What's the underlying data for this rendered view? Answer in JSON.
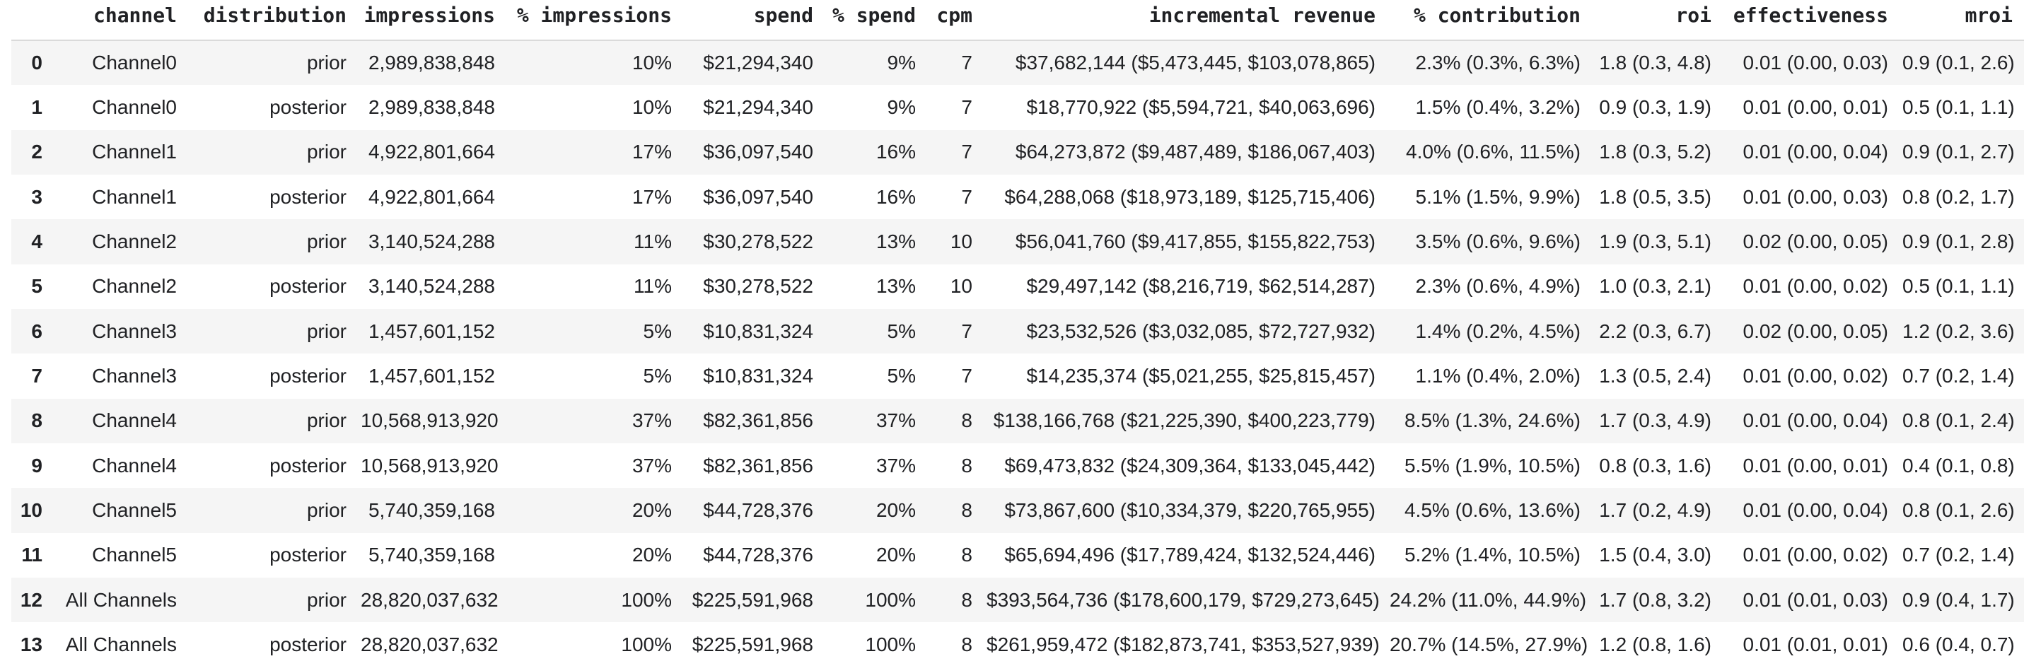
{
  "colors": {
    "background": "#ffffff",
    "text": "#202124",
    "row_stripe": "#f5f5f5",
    "header_border": "#dadada"
  },
  "table": {
    "index_header": "",
    "columns": [
      "channel",
      "distribution",
      "impressions",
      "% impressions",
      "spend",
      "% spend",
      "cpm",
      "incremental revenue",
      "% contribution",
      "roi",
      "effectiveness",
      "mroi"
    ],
    "rows": [
      {
        "index": "0",
        "channel": "Channel0",
        "distribution": "prior",
        "impressions": "2,989,838,848",
        "pct_impressions": "10%",
        "spend": "$21,294,340",
        "pct_spend": "9%",
        "cpm": "7",
        "incremental_revenue": "$37,682,144 ($5,473,445, $103,078,865)",
        "pct_contribution": "2.3% (0.3%, 6.3%)",
        "roi": "1.8 (0.3, 4.8)",
        "effectiveness": "0.01 (0.00, 0.03)",
        "mroi": "0.9 (0.1, 2.6)"
      },
      {
        "index": "1",
        "channel": "Channel0",
        "distribution": "posterior",
        "impressions": "2,989,838,848",
        "pct_impressions": "10%",
        "spend": "$21,294,340",
        "pct_spend": "9%",
        "cpm": "7",
        "incremental_revenue": "$18,770,922 ($5,594,721, $40,063,696)",
        "pct_contribution": "1.5% (0.4%, 3.2%)",
        "roi": "0.9 (0.3, 1.9)",
        "effectiveness": "0.01 (0.00, 0.01)",
        "mroi": "0.5 (0.1, 1.1)"
      },
      {
        "index": "2",
        "channel": "Channel1",
        "distribution": "prior",
        "impressions": "4,922,801,664",
        "pct_impressions": "17%",
        "spend": "$36,097,540",
        "pct_spend": "16%",
        "cpm": "7",
        "incremental_revenue": "$64,273,872 ($9,487,489, $186,067,403)",
        "pct_contribution": "4.0% (0.6%, 11.5%)",
        "roi": "1.8 (0.3, 5.2)",
        "effectiveness": "0.01 (0.00, 0.04)",
        "mroi": "0.9 (0.1, 2.7)"
      },
      {
        "index": "3",
        "channel": "Channel1",
        "distribution": "posterior",
        "impressions": "4,922,801,664",
        "pct_impressions": "17%",
        "spend": "$36,097,540",
        "pct_spend": "16%",
        "cpm": "7",
        "incremental_revenue": "$64,288,068 ($18,973,189, $125,715,406)",
        "pct_contribution": "5.1% (1.5%, 9.9%)",
        "roi": "1.8 (0.5, 3.5)",
        "effectiveness": "0.01 (0.00, 0.03)",
        "mroi": "0.8 (0.2, 1.7)"
      },
      {
        "index": "4",
        "channel": "Channel2",
        "distribution": "prior",
        "impressions": "3,140,524,288",
        "pct_impressions": "11%",
        "spend": "$30,278,522",
        "pct_spend": "13%",
        "cpm": "10",
        "incremental_revenue": "$56,041,760 ($9,417,855, $155,822,753)",
        "pct_contribution": "3.5% (0.6%, 9.6%)",
        "roi": "1.9 (0.3, 5.1)",
        "effectiveness": "0.02 (0.00, 0.05)",
        "mroi": "0.9 (0.1, 2.8)"
      },
      {
        "index": "5",
        "channel": "Channel2",
        "distribution": "posterior",
        "impressions": "3,140,524,288",
        "pct_impressions": "11%",
        "spend": "$30,278,522",
        "pct_spend": "13%",
        "cpm": "10",
        "incremental_revenue": "$29,497,142 ($8,216,719, $62,514,287)",
        "pct_contribution": "2.3% (0.6%, 4.9%)",
        "roi": "1.0 (0.3, 2.1)",
        "effectiveness": "0.01 (0.00, 0.02)",
        "mroi": "0.5 (0.1, 1.1)"
      },
      {
        "index": "6",
        "channel": "Channel3",
        "distribution": "prior",
        "impressions": "1,457,601,152",
        "pct_impressions": "5%",
        "spend": "$10,831,324",
        "pct_spend": "5%",
        "cpm": "7",
        "incremental_revenue": "$23,532,526 ($3,032,085, $72,727,932)",
        "pct_contribution": "1.4% (0.2%, 4.5%)",
        "roi": "2.2 (0.3, 6.7)",
        "effectiveness": "0.02 (0.00, 0.05)",
        "mroi": "1.2 (0.2, 3.6)"
      },
      {
        "index": "7",
        "channel": "Channel3",
        "distribution": "posterior",
        "impressions": "1,457,601,152",
        "pct_impressions": "5%",
        "spend": "$10,831,324",
        "pct_spend": "5%",
        "cpm": "7",
        "incremental_revenue": "$14,235,374 ($5,021,255, $25,815,457)",
        "pct_contribution": "1.1% (0.4%, 2.0%)",
        "roi": "1.3 (0.5, 2.4)",
        "effectiveness": "0.01 (0.00, 0.02)",
        "mroi": "0.7 (0.2, 1.4)"
      },
      {
        "index": "8",
        "channel": "Channel4",
        "distribution": "prior",
        "impressions": "10,568,913,920",
        "pct_impressions": "37%",
        "spend": "$82,361,856",
        "pct_spend": "37%",
        "cpm": "8",
        "incremental_revenue": "$138,166,768 ($21,225,390, $400,223,779)",
        "pct_contribution": "8.5% (1.3%, 24.6%)",
        "roi": "1.7 (0.3, 4.9)",
        "effectiveness": "0.01 (0.00, 0.04)",
        "mroi": "0.8 (0.1, 2.4)"
      },
      {
        "index": "9",
        "channel": "Channel4",
        "distribution": "posterior",
        "impressions": "10,568,913,920",
        "pct_impressions": "37%",
        "spend": "$82,361,856",
        "pct_spend": "37%",
        "cpm": "8",
        "incremental_revenue": "$69,473,832 ($24,309,364, $133,045,442)",
        "pct_contribution": "5.5% (1.9%, 10.5%)",
        "roi": "0.8 (0.3, 1.6)",
        "effectiveness": "0.01 (0.00, 0.01)",
        "mroi": "0.4 (0.1, 0.8)"
      },
      {
        "index": "10",
        "channel": "Channel5",
        "distribution": "prior",
        "impressions": "5,740,359,168",
        "pct_impressions": "20%",
        "spend": "$44,728,376",
        "pct_spend": "20%",
        "cpm": "8",
        "incremental_revenue": "$73,867,600 ($10,334,379, $220,765,955)",
        "pct_contribution": "4.5% (0.6%, 13.6%)",
        "roi": "1.7 (0.2, 4.9)",
        "effectiveness": "0.01 (0.00, 0.04)",
        "mroi": "0.8 (0.1, 2.6)"
      },
      {
        "index": "11",
        "channel": "Channel5",
        "distribution": "posterior",
        "impressions": "5,740,359,168",
        "pct_impressions": "20%",
        "spend": "$44,728,376",
        "pct_spend": "20%",
        "cpm": "8",
        "incremental_revenue": "$65,694,496 ($17,789,424, $132,524,446)",
        "pct_contribution": "5.2% (1.4%, 10.5%)",
        "roi": "1.5 (0.4, 3.0)",
        "effectiveness": "0.01 (0.00, 0.02)",
        "mroi": "0.7 (0.2, 1.4)"
      },
      {
        "index": "12",
        "channel": "All Channels",
        "distribution": "prior",
        "impressions": "28,820,037,632",
        "pct_impressions": "100%",
        "spend": "$225,591,968",
        "pct_spend": "100%",
        "cpm": "8",
        "incremental_revenue": "$393,564,736 ($178,600,179, $729,273,645)",
        "pct_contribution": "24.2% (11.0%, 44.9%)",
        "roi": "1.7 (0.8, 3.2)",
        "effectiveness": "0.01 (0.01, 0.03)",
        "mroi": "0.9 (0.4, 1.7)"
      },
      {
        "index": "13",
        "channel": "All Channels",
        "distribution": "posterior",
        "impressions": "28,820,037,632",
        "pct_impressions": "100%",
        "spend": "$225,591,968",
        "pct_spend": "100%",
        "cpm": "8",
        "incremental_revenue": "$261,959,472 ($182,873,741, $353,527,939)",
        "pct_contribution": "20.7% (14.5%, 27.9%)",
        "roi": "1.2 (0.8, 1.6)",
        "effectiveness": "0.01 (0.01, 0.01)",
        "mroi": "0.6 (0.4, 0.7)"
      }
    ]
  }
}
